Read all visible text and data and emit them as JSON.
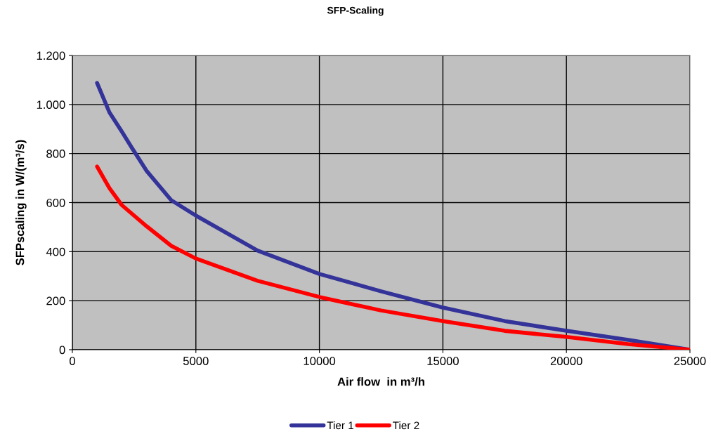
{
  "chart_data": {
    "type": "line",
    "title": "SFP-Scaling",
    "xlabel": "Air flow  in m³/h",
    "ylabel": "SFPscaling in W/(m³/s)",
    "series": [
      {
        "name": "Tier 1",
        "color": "#333399",
        "x": [
          1000,
          1500,
          2000,
          2400,
          3000,
          4000,
          5000,
          7500,
          10000,
          12500,
          15000,
          17500,
          20000,
          22500,
          25000
        ],
        "values": [
          1088,
          968,
          890,
          825,
          730,
          610,
          547,
          404,
          309,
          238,
          172,
          117,
          77,
          40,
          0
        ]
      },
      {
        "name": "Tier 2",
        "color": "#ff0000",
        "x": [
          1000,
          1500,
          2000,
          3000,
          4000,
          5000,
          7500,
          10000,
          12500,
          15000,
          17500,
          20000,
          22500,
          25000
        ],
        "values": [
          747,
          659,
          590,
          504,
          424,
          372,
          281,
          215,
          160,
          117,
          77,
          52,
          23,
          0
        ]
      }
    ],
    "xlim": [
      0,
      25000
    ],
    "xticks": [
      0,
      5000,
      10000,
      15000,
      20000,
      25000
    ],
    "ylim": [
      0,
      1200
    ],
    "yticks": [
      0,
      200,
      400,
      600,
      800,
      {
        "value": 1000,
        "label": "1.000"
      },
      {
        "value": 1200,
        "label": "1.200"
      }
    ],
    "grid": true,
    "legend": "bottom",
    "marker": "none",
    "line_style": "solid"
  }
}
